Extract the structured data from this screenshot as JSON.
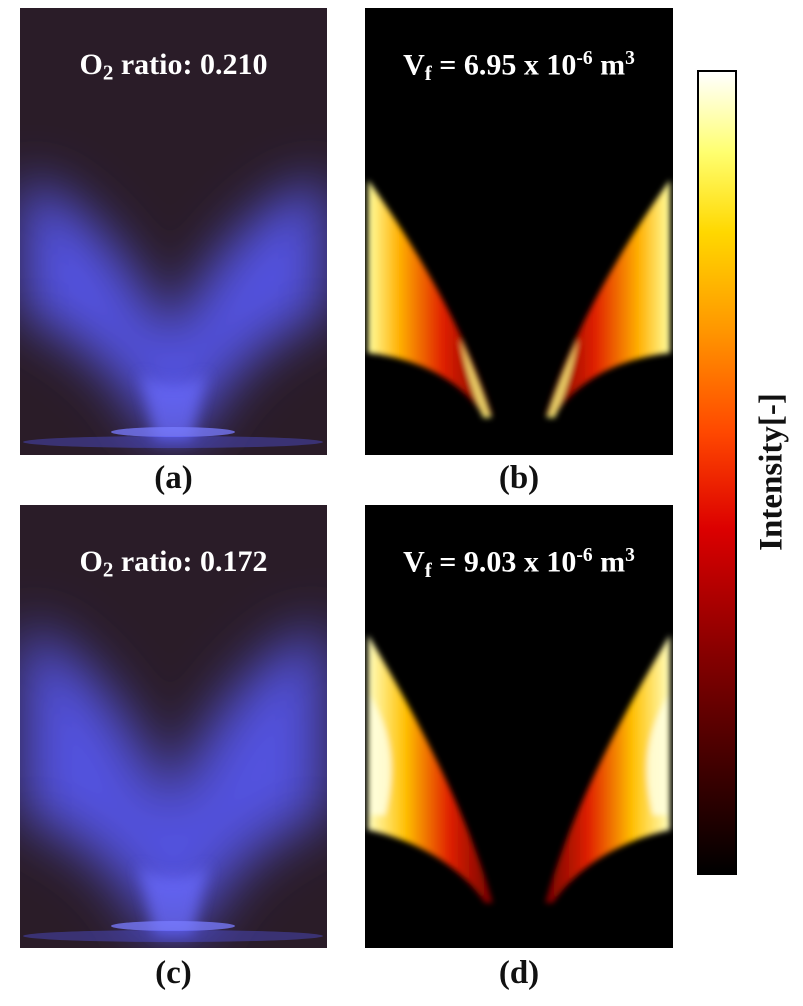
{
  "panels": [
    {
      "id": "a",
      "label": "(a)",
      "title": {
        "prefix": "O",
        "sub": "2",
        "text": " ratio: 0.210"
      }
    },
    {
      "id": "b",
      "label": "(b)",
      "title": {
        "prefix": "V",
        "sub": "f",
        "text": " = 6.95 x 10",
        "sup": "-6",
        "unit": " m",
        "unit_sup": "3"
      }
    },
    {
      "id": "c",
      "label": "(c)",
      "title": {
        "prefix": "O",
        "sub": "2",
        "text": " ratio: 0.172"
      }
    },
    {
      "id": "d",
      "label": "(d)",
      "title": {
        "prefix": "V",
        "sub": "f",
        "text": " = 9.03 x 10",
        "sup": "-6",
        "unit": " m",
        "unit_sup": "3"
      }
    }
  ],
  "colorbar": {
    "label": "Intensity[-]",
    "colormap": "hot"
  },
  "colors": {
    "flame_bg": "#2a1c28",
    "flame_glow": "#5a5cff",
    "soot_bg": "#000000"
  }
}
